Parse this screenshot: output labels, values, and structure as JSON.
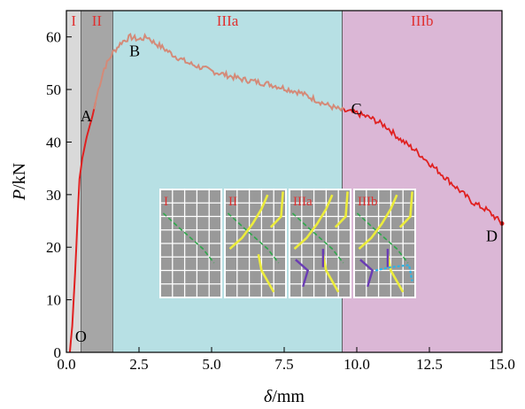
{
  "chart_data": {
    "type": "line",
    "xlabel_symbol": "δ",
    "xlabel_unit": "/mm",
    "ylabel_symbol": "P",
    "ylabel_unit": "/kN",
    "xlim": [
      0,
      15
    ],
    "ylim": [
      0,
      65
    ],
    "x_ticks": [
      0,
      2.5,
      5,
      7.5,
      10,
      12.5,
      15
    ],
    "x_tick_labels": [
      "0.0",
      "2.5",
      "5.0",
      "7.5",
      "10.0",
      "12.5",
      "15.0"
    ],
    "y_ticks": [
      0,
      10,
      20,
      30,
      40,
      50,
      60
    ],
    "y_tick_labels": [
      "0",
      "10",
      "20",
      "30",
      "40",
      "50",
      "60"
    ],
    "stages": [
      {
        "label": "I",
        "x_start": 0,
        "x_end": 0.5,
        "color": "#d9d9d9",
        "label_color": "#e03030"
      },
      {
        "label": "II",
        "x_start": 0.5,
        "x_end": 1.6,
        "color": "#a6a6a6",
        "label_color": "#e03030"
      },
      {
        "label": "IIIa",
        "x_start": 1.6,
        "x_end": 9.5,
        "color": "#b7e0e4",
        "label_color": "#e03030"
      },
      {
        "label": "IIIb",
        "x_start": 9.5,
        "x_end": 15,
        "color": "#dbb7d6",
        "label_color": "#e03030"
      }
    ],
    "series": [
      {
        "color_initial": "#e02020",
        "color_middle": "#d48a78",
        "points": [
          [
            0.12,
            0
          ],
          [
            0.2,
            5
          ],
          [
            0.3,
            15
          ],
          [
            0.38,
            25
          ],
          [
            0.45,
            33
          ],
          [
            0.55,
            37
          ],
          [
            0.7,
            41
          ],
          [
            0.9,
            45
          ],
          [
            1.1,
            50
          ],
          [
            1.3,
            54
          ],
          [
            1.6,
            57
          ],
          [
            1.9,
            59
          ],
          [
            2.2,
            60
          ],
          [
            2.5,
            59.5
          ],
          [
            2.8,
            60
          ],
          [
            3.0,
            59
          ],
          [
            3.3,
            58
          ],
          [
            3.7,
            56.5
          ],
          [
            4.2,
            55
          ],
          [
            5.0,
            53.5
          ],
          [
            6.0,
            52
          ],
          [
            7.0,
            51
          ],
          [
            8.0,
            49.5
          ],
          [
            9.0,
            47
          ],
          [
            9.5,
            46
          ],
          [
            10.0,
            45.5
          ],
          [
            10.5,
            44.5
          ],
          [
            11.0,
            43
          ],
          [
            11.5,
            40.5
          ],
          [
            12.0,
            38.5
          ],
          [
            12.5,
            36
          ],
          [
            13.0,
            33.5
          ],
          [
            13.5,
            31
          ],
          [
            14.0,
            28.5
          ],
          [
            14.5,
            27
          ],
          [
            15.0,
            24.5
          ]
        ]
      }
    ],
    "point_labels": [
      {
        "label": "O",
        "x": 0.12,
        "y": 0
      },
      {
        "label": "A",
        "x": 0.85,
        "y": 45
      },
      {
        "label": "B",
        "x": 2.2,
        "y": 60
      },
      {
        "label": "C",
        "x": 9.5,
        "y": 46
      },
      {
        "label": "D",
        "x": 15.0,
        "y": 24.5
      }
    ]
  },
  "inset_panels": [
    {
      "label": "I"
    },
    {
      "label": "II"
    },
    {
      "label": "IIIa"
    },
    {
      "label": "IIIb"
    }
  ],
  "colors": {
    "crack_green": "#2ea84a",
    "crack_yellow": "#ecec3c",
    "crack_purple": "#6a3cb4",
    "crack_blue": "#2ab4e8",
    "panel_bg": "#999999",
    "grid_line": "#ffffff"
  }
}
